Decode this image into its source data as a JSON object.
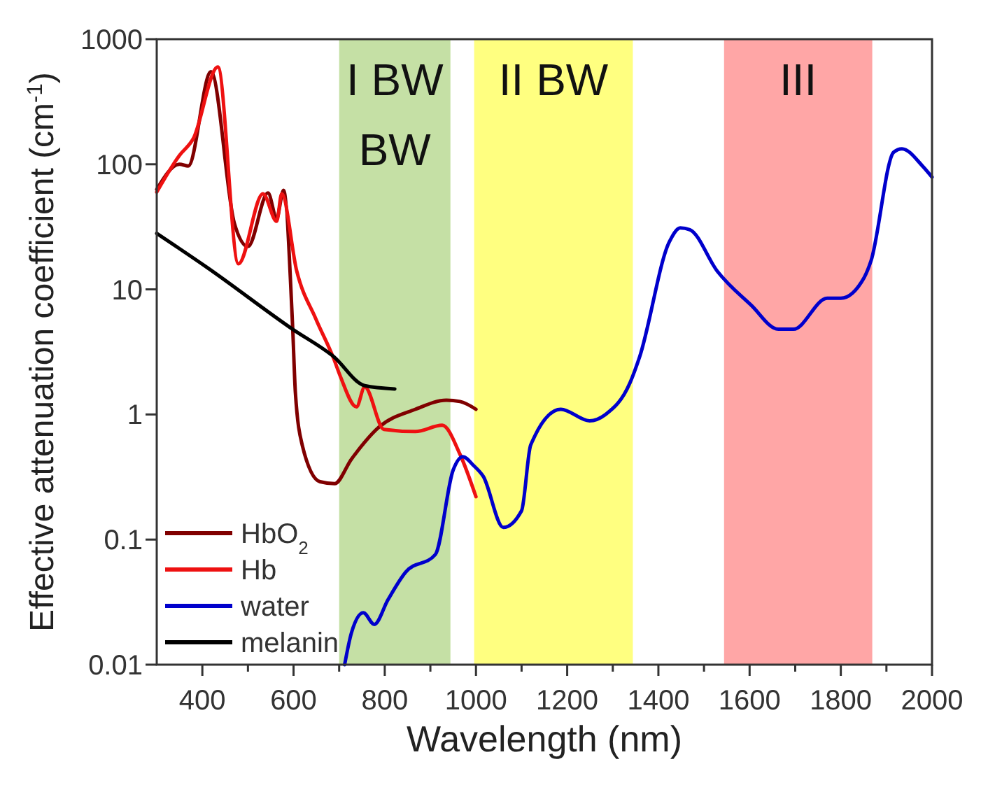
{
  "chart_data": {
    "type": "line",
    "xlabel": "Wavelength (nm)",
    "ylabel": "Effective attenuation coefficient (cm$^{-1}$)",
    "log": "y",
    "xlim": [
      300,
      2000
    ],
    "ylim": [
      0.01,
      1000
    ],
    "xticks": [
      400,
      {
        "value": 500,
        "label": null
      },
      600,
      {
        "value": 700,
        "label": null
      },
      800,
      {
        "value": 900,
        "label": null
      },
      1000,
      {
        "value": 1100,
        "label": null
      },
      1200,
      {
        "value": 1300,
        "label": null
      },
      1400,
      {
        "value": 1500,
        "label": null
      },
      1600,
      {
        "value": 1700,
        "label": null
      },
      1800,
      {
        "value": 1900,
        "label": null
      },
      2000
    ],
    "yticks": [
      0.01,
      0.1,
      1,
      10,
      100,
      1000
    ],
    "legend": "bottom left",
    "grid": false,
    "bands": [
      {
        "axis": "x",
        "from": 700,
        "to": 944,
        "label": "I BW",
        "color": "#c5e0a5"
      },
      {
        "axis": "x",
        "from": 996,
        "to": 1344,
        "label": "II BW",
        "color": "#ffff80"
      },
      {
        "axis": "x",
        "from": 1544,
        "to": 1869,
        "label": "III",
        "color": "#ffa6a6"
      }
    ],
    "annotations": [
      "BW"
    ],
    "series": [
      {
        "name": "HbO$_{2}$",
        "color": "#800000",
        "x": [
          300,
          350,
          369,
          419,
          470,
          500,
          544,
          563,
          578,
          598,
          604,
          619,
          658,
          690,
          727,
          787,
          867,
          935,
          965,
          1000
        ],
        "values": [
          63,
          100,
          97,
          550,
          34,
          22,
          59,
          37,
          62,
          5,
          1.5,
          0.57,
          0.29,
          0.28,
          0.44,
          0.79,
          1.1,
          1.3,
          1.27,
          1.1
        ]
      },
      {
        "name": "Hb",
        "color": "#ee1111",
        "x": [
          300,
          350,
          380,
          434,
          479,
          533,
          563,
          574,
          607,
          649,
          688,
          703,
          738,
          756,
          798,
          867,
          926,
          965,
          1000
        ],
        "values": [
          60,
          118,
          160,
          600,
          16,
          58,
          35,
          58,
          14,
          5.8,
          2.8,
          2.0,
          1.15,
          1.66,
          0.76,
          0.73,
          0.82,
          0.48,
          0.22
        ]
      },
      {
        "name": "water",
        "color": "#0000cc",
        "x": [
          712,
          727,
          753,
          777,
          807,
          846,
          911,
          950,
          971,
          995,
          1016,
          1060,
          1100,
          1120,
          1186,
          1249,
          1284,
          1338,
          1359,
          1424,
          1448,
          1469,
          1529,
          1603,
          1663,
          1696,
          1770,
          1800,
          1851,
          1866,
          1916,
          1934,
          1979,
          2000
        ],
        "values": [
          0.01,
          0.018,
          0.026,
          0.021,
          0.033,
          0.055,
          0.076,
          0.36,
          0.46,
          0.39,
          0.32,
          0.125,
          0.17,
          0.57,
          1.1,
          0.89,
          1.0,
          1.8,
          2.9,
          24,
          31,
          30,
          14,
          7.5,
          4.8,
          4.8,
          8.5,
          8.5,
          12.4,
          16.8,
          125,
          133,
          97,
          79
        ]
      },
      {
        "name": "melanin",
        "color": "#000000",
        "x": [
          300,
          410,
          598,
          688,
          756,
          822
        ],
        "values": [
          28,
          15,
          4.8,
          2.9,
          1.7,
          1.6
        ]
      }
    ]
  }
}
